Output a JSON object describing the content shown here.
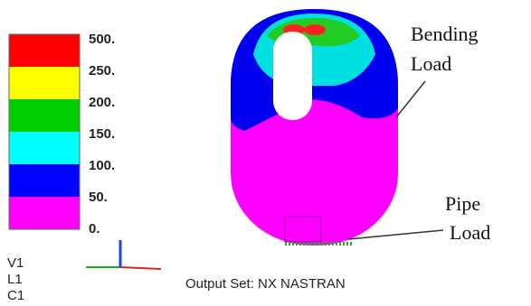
{
  "legend": {
    "labels": [
      "500.",
      "250.",
      "200.",
      "150.",
      "100.",
      "50.",
      "0."
    ]
  },
  "annotations": {
    "bending": [
      "Bending",
      "Load"
    ],
    "pipe": [
      "Pipe",
      "Load"
    ]
  },
  "view_info": [
    "V1",
    "L1",
    "C1"
  ],
  "output_set": "Output Set: NX NASTRAN"
}
